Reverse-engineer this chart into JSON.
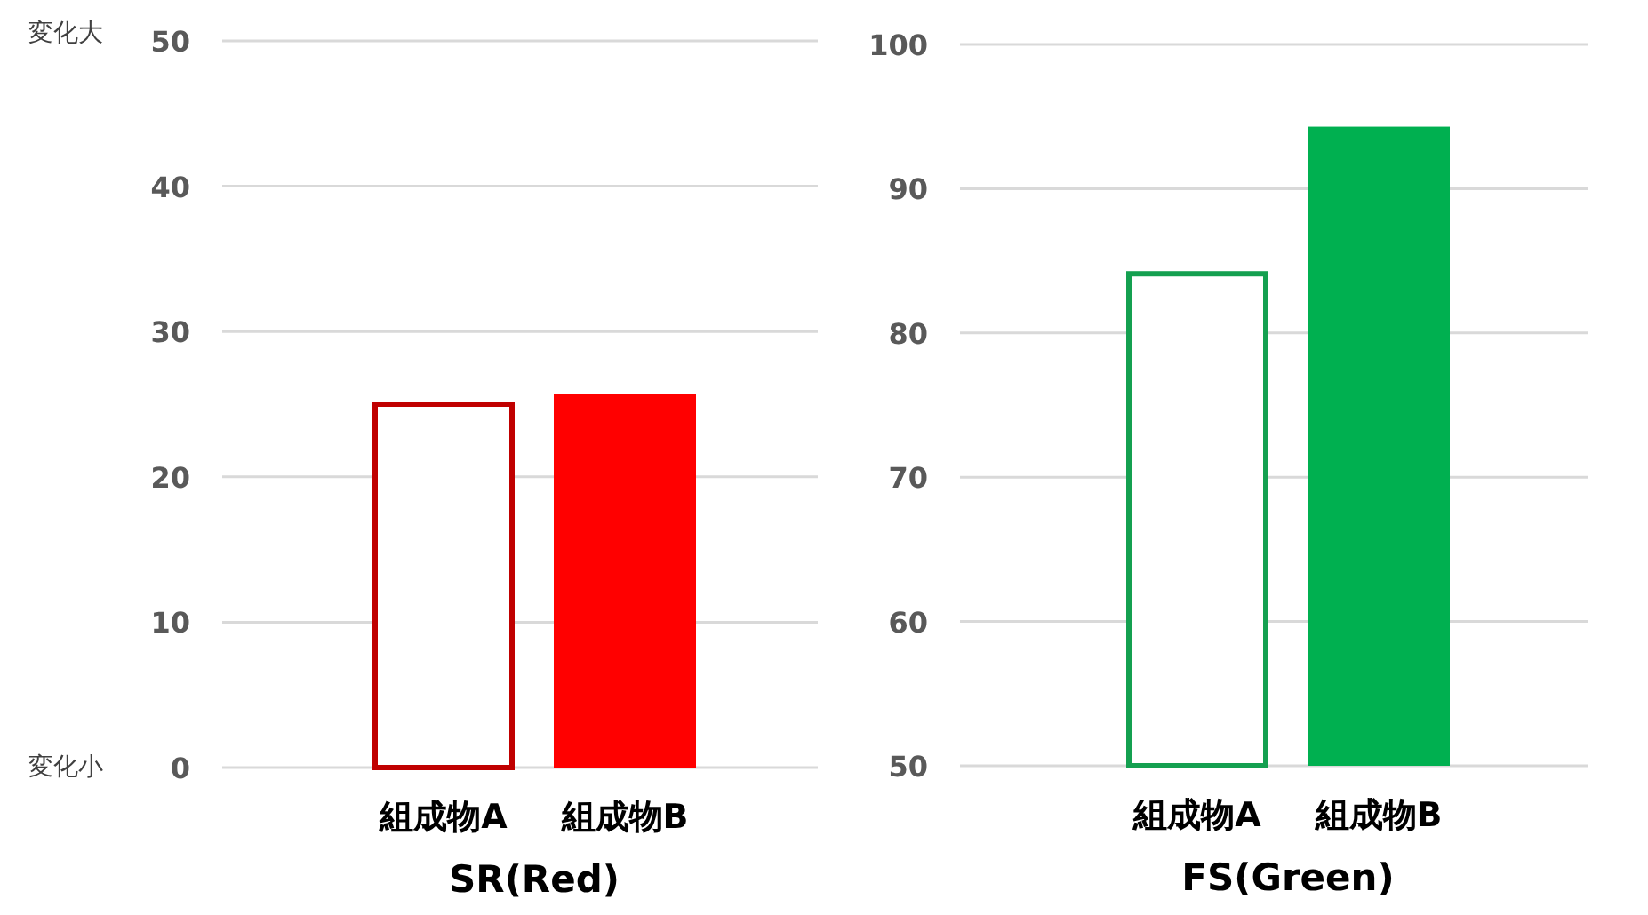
{
  "chart_data": [
    {
      "type": "bar",
      "categories": [
        "組成物A",
        "組成物B"
      ],
      "values": [
        25,
        25.7
      ],
      "colors": [
        "#c00000",
        "#ff0000"
      ],
      "xlabel": "SR(Red)",
      "ylim": [
        0,
        50
      ],
      "yticks": [
        0,
        10,
        20,
        30,
        40,
        50
      ],
      "grid": "y",
      "annotations": [
        "変化大",
        "変化小"
      ]
    },
    {
      "type": "bar",
      "categories": [
        "組成物A",
        "組成物B"
      ],
      "values": [
        84.1,
        94.3
      ],
      "colors": [
        "#14a050",
        "#00b050"
      ],
      "xlabel": "FS(Green)",
      "ylim": [
        50,
        100
      ],
      "yticks": [
        50,
        60,
        70,
        80,
        90,
        100
      ],
      "grid": "y"
    }
  ]
}
